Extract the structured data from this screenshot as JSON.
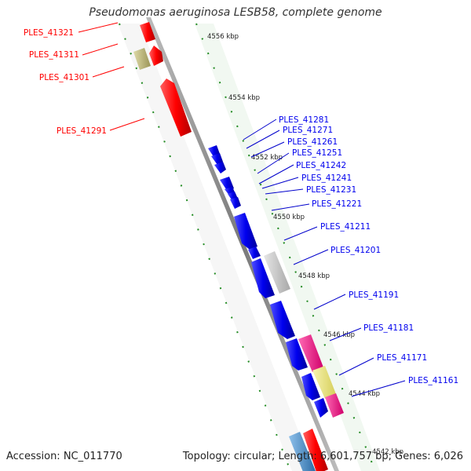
{
  "title": "Pseudomonas aeruginosa LESB58, complete genome",
  "accession": "Accession: NC_011770",
  "summary": "Topology: circular; Length: 6,601,757 bp; Genes: 6,026",
  "colors": {
    "forward": "#ff0000",
    "reverse": "#0000ee",
    "backbone": "#888888",
    "tick_dots": "#228b22",
    "pink": "#ff1493",
    "yellow": "#ece77a",
    "olive": "#c2bc78",
    "grey": "#c8c8c8",
    "steel": "#4f8fc8"
  },
  "ticks": [
    {
      "label": "4556 kbp"
    },
    {
      "label": "4554 kbp"
    },
    {
      "label": "4552 kbp"
    },
    {
      "label": "4550 kbp"
    },
    {
      "label": "4548 kbp"
    },
    {
      "label": "4546 kbp"
    },
    {
      "label": "4544 kbp"
    },
    {
      "label": "4542 kbp"
    }
  ],
  "genes_left": [
    {
      "label": "PLES_41321"
    },
    {
      "label": "PLES_41311"
    },
    {
      "label": "PLES_41301"
    },
    {
      "label": "PLES_41291"
    }
  ],
  "genes_right": [
    {
      "label": "PLES_41281"
    },
    {
      "label": "PLES_41271"
    },
    {
      "label": "PLES_41261"
    },
    {
      "label": "PLES_41251"
    },
    {
      "label": "PLES_41242"
    },
    {
      "label": "PLES_41241"
    },
    {
      "label": "PLES_41231"
    },
    {
      "label": "PLES_41221"
    },
    {
      "label": "PLES_41211"
    },
    {
      "label": "PLES_41201"
    },
    {
      "label": "PLES_41191"
    },
    {
      "label": "PLES_41181"
    },
    {
      "label": "PLES_41171"
    },
    {
      "label": "PLES_41161"
    }
  ]
}
